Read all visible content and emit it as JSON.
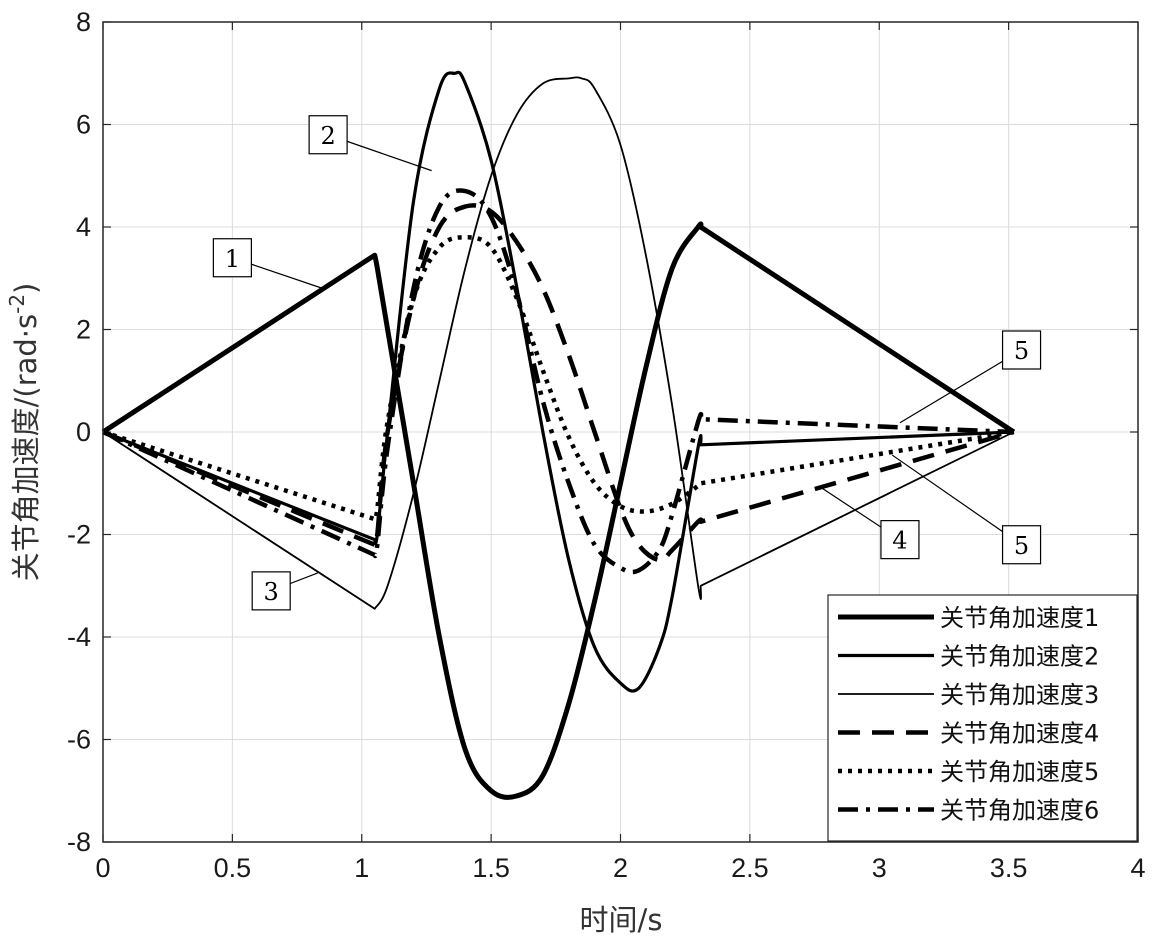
{
  "chart_data": {
    "type": "line",
    "title": "",
    "xlabel": "时间/s",
    "ylabel": "关节角加速度/(rad·s",
    "ylabel_sup": "-2",
    "ylabel_close": ")",
    "xlim": [
      0,
      4
    ],
    "ylim": [
      -8,
      8
    ],
    "xticks": [
      "0",
      "0.5",
      "1",
      "1.5",
      "2",
      "2.5",
      "3",
      "3.5",
      "4"
    ],
    "yticks": [
      "-8",
      "-6",
      "-4",
      "-2",
      "0",
      "2",
      "4",
      "6",
      "8"
    ],
    "grid": true,
    "legend_position": "bottom-right",
    "series": [
      {
        "name": "关节角加速度1",
        "style": "solid-thick",
        "x": [
          0,
          1.05,
          1.06,
          1.1,
          1.2,
          1.3,
          1.4,
          1.5,
          1.6,
          1.7,
          1.8,
          1.9,
          2.0,
          2.1,
          2.2,
          2.3,
          2.31,
          3.52
        ],
        "y": [
          0,
          3.45,
          3.2,
          2.0,
          -1.0,
          -4.0,
          -6.2,
          -7.0,
          -7.1,
          -6.7,
          -5.3,
          -3.3,
          -1.0,
          1.3,
          3.2,
          4.0,
          4.0,
          0
        ]
      },
      {
        "name": "关节角加速度2",
        "style": "solid",
        "x": [
          0,
          1.05,
          1.06,
          1.1,
          1.2,
          1.3,
          1.36,
          1.4,
          1.5,
          1.6,
          1.7,
          1.8,
          1.9,
          2.0,
          2.07,
          2.15,
          2.2,
          2.3,
          2.31,
          3.52
        ],
        "y": [
          0,
          -2.1,
          -2.0,
          0.0,
          4.5,
          6.7,
          7.0,
          6.8,
          5.3,
          2.8,
          0.0,
          -2.5,
          -4.2,
          -4.9,
          -5.0,
          -4.2,
          -3.2,
          -0.3,
          -0.25,
          0
        ]
      },
      {
        "name": "关节角加速度3",
        "style": "solid-thin",
        "x": [
          0,
          1.05,
          1.1,
          1.2,
          1.3,
          1.4,
          1.5,
          1.6,
          1.7,
          1.8,
          1.85,
          1.9,
          2.0,
          2.1,
          2.2,
          2.3,
          2.31,
          3.52
        ],
        "y": [
          0,
          -3.45,
          -3.0,
          -1.2,
          1.0,
          3.2,
          5.0,
          6.2,
          6.8,
          6.9,
          6.9,
          6.7,
          5.6,
          3.4,
          0.5,
          -3.0,
          -3.0,
          0
        ]
      },
      {
        "name": "关节角加速度4",
        "style": "dashed",
        "x": [
          0,
          1.05,
          1.06,
          1.1,
          1.2,
          1.3,
          1.4,
          1.5,
          1.6,
          1.7,
          1.8,
          1.9,
          2.0,
          2.07,
          2.15,
          2.2,
          2.3,
          2.31,
          3.52
        ],
        "y": [
          0,
          -2.2,
          -2.0,
          0.0,
          2.6,
          4.0,
          4.4,
          4.3,
          3.7,
          2.8,
          1.5,
          0.0,
          -1.5,
          -2.2,
          -2.5,
          -2.3,
          -1.75,
          -1.75,
          0
        ]
      },
      {
        "name": "关节角加速度5",
        "style": "dotted",
        "x": [
          0,
          1.05,
          1.06,
          1.1,
          1.2,
          1.3,
          1.4,
          1.5,
          1.6,
          1.7,
          1.8,
          1.9,
          2.0,
          2.1,
          2.2,
          2.3,
          2.31,
          3.52
        ],
        "y": [
          0,
          -1.7,
          -1.5,
          0.2,
          2.6,
          3.6,
          3.8,
          3.6,
          2.6,
          1.2,
          -0.1,
          -1.0,
          -1.45,
          -1.55,
          -1.4,
          -1.05,
          -1.0,
          0
        ]
      },
      {
        "name": "关节角加速度6",
        "style": "dashdot",
        "x": [
          0,
          1.05,
          1.06,
          1.1,
          1.2,
          1.3,
          1.4,
          1.5,
          1.6,
          1.7,
          1.8,
          1.9,
          2.0,
          2.07,
          2.15,
          2.2,
          2.3,
          2.31,
          3.52
        ],
        "y": [
          0,
          -2.4,
          -2.2,
          -0.3,
          2.8,
          4.4,
          4.7,
          4.2,
          2.7,
          0.6,
          -1.0,
          -2.2,
          -2.65,
          -2.7,
          -2.3,
          -1.6,
          0.2,
          0.25,
          0
        ]
      }
    ],
    "annotations": [
      {
        "label": "1",
        "box_at": [
          0.5,
          3.4
        ],
        "points_to": [
          0.85,
          2.8
        ]
      },
      {
        "label": "2",
        "box_at": [
          0.87,
          5.8
        ],
        "points_to": [
          1.27,
          5.1
        ]
      },
      {
        "label": "3",
        "box_at": [
          0.65,
          -3.1
        ],
        "points_to": [
          0.83,
          -2.75
        ]
      },
      {
        "label": "4",
        "box_at": [
          3.08,
          -2.1
        ],
        "points_to": [
          2.78,
          -1.1
        ]
      },
      {
        "label": "5",
        "box_at": [
          3.55,
          1.6
        ],
        "points_to": [
          3.08,
          0.18
        ]
      },
      {
        "label": "5",
        "box_at": [
          3.55,
          -2.2
        ],
        "points_to": [
          3.05,
          -0.45
        ]
      }
    ]
  }
}
